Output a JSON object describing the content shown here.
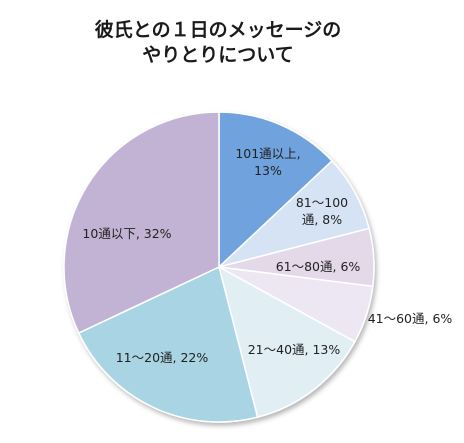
{
  "title_lines": [
    "彼氏との１日のメッセージの",
    "やりとりについて"
  ],
  "chart_data": {
    "type": "pie",
    "title": "彼氏との１日のメッセージのやりとりについて",
    "unit": "%",
    "start": "12 o'clock",
    "direction": "clockwise",
    "slices": [
      {
        "name": "101通以上",
        "value": 13,
        "label_lines": [
          "101通以上,",
          "13%"
        ],
        "color": "#6FA2DD"
      },
      {
        "name": "81〜100通",
        "value": 8,
        "label_lines": [
          "81〜100",
          "通, 8%"
        ],
        "color": "#D6E3F4"
      },
      {
        "name": "61〜80通",
        "value": 6,
        "label_lines": [
          "61〜80通, 6%"
        ],
        "color": "#E3D9E9"
      },
      {
        "name": "41〜60通",
        "value": 6,
        "label_lines": [
          "41〜60通, 6%"
        ],
        "color": "#ECE7F2"
      },
      {
        "name": "21〜40通",
        "value": 13,
        "label_lines": [
          "21〜40通, 13%"
        ],
        "color": "#E1EFF5"
      },
      {
        "name": "11〜20通",
        "value": 22,
        "label_lines": [
          "11〜20通, 22%"
        ],
        "color": "#A9D4E3"
      },
      {
        "name": "10通以下",
        "value": 32,
        "label_lines": [
          "10通以下, 32%"
        ],
        "color": "#C2B3D5"
      }
    ]
  }
}
